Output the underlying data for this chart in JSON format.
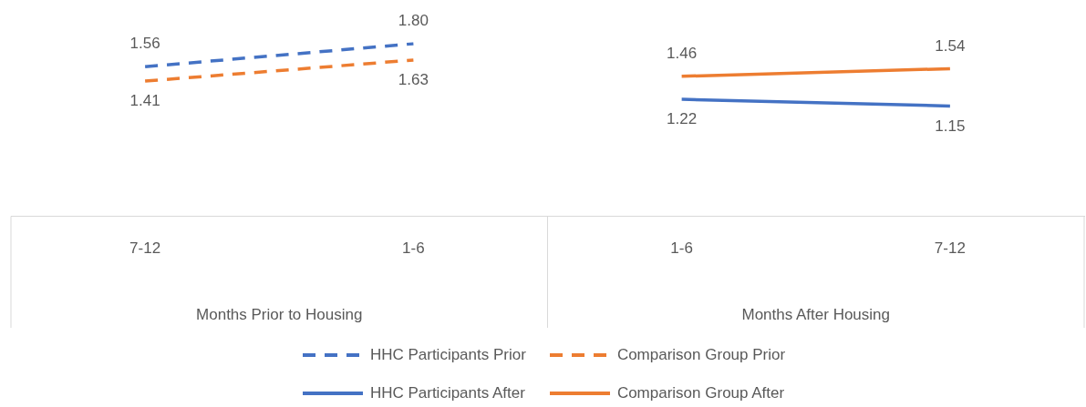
{
  "chart_data": {
    "type": "line",
    "categories": [
      "7-12",
      "1-6",
      "1-6",
      "7-12"
    ],
    "annotations": [
      "Months Prior to Housing",
      "Months After Housing"
    ],
    "series": [
      {
        "name": "HHC Participants Prior",
        "color": "#4472c4",
        "line_style": "dashed",
        "values": [
          1.56,
          1.8,
          null,
          null
        ],
        "value_labels": [
          "1.56",
          "1.80",
          null,
          null
        ]
      },
      {
        "name": "Comparison Group Prior",
        "color": "#ed7d31",
        "line_style": "dashed",
        "values": [
          1.41,
          1.63,
          null,
          null
        ],
        "value_labels": [
          "1.41",
          "1.63",
          null,
          null
        ]
      },
      {
        "name": "HHC Participants After",
        "color": "#4472c4",
        "line_style": "solid",
        "values": [
          null,
          null,
          1.22,
          1.15
        ],
        "value_labels": [
          null,
          null,
          "1.22",
          "1.15"
        ]
      },
      {
        "name": "Comparison Group After",
        "color": "#ed7d31",
        "line_style": "solid",
        "values": [
          null,
          null,
          1.46,
          1.54
        ],
        "value_labels": [
          null,
          null,
          "1.46",
          "1.54"
        ]
      }
    ],
    "tick_labels": "x",
    "legend": "bottom",
    "marker": "none",
    "grid": false
  }
}
